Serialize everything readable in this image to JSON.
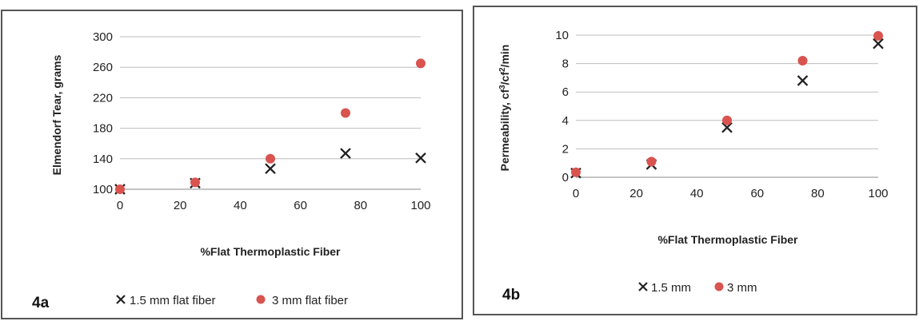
{
  "chart_data": [
    {
      "type": "scatter",
      "panel_label": "4a",
      "xlabel": "%Flat Thermoplastic Fiber",
      "ylabel": "Elmendorf Tear, grams",
      "xlim": [
        0,
        100
      ],
      "ylim": [
        100,
        300
      ],
      "x_ticks": [
        0,
        20,
        40,
        60,
        80,
        100
      ],
      "y_ticks": [
        100,
        140,
        180,
        220,
        260,
        300
      ],
      "grid": "horizontal",
      "legend_position": "bottom",
      "series": [
        {
          "name": "1.5 mm flat fiber",
          "marker": "x",
          "color": "#222222",
          "points": [
            [
              0,
              100
            ],
            [
              25,
              108
            ],
            [
              50,
              127
            ],
            [
              75,
              147
            ],
            [
              100,
              141
            ]
          ]
        },
        {
          "name": "3 mm flat fiber",
          "marker": "circle",
          "color": "#d9534f",
          "points": [
            [
              0,
              100
            ],
            [
              25,
              109
            ],
            [
              50,
              140
            ],
            [
              75,
              200
            ],
            [
              100,
              265
            ]
          ]
        }
      ]
    },
    {
      "type": "scatter",
      "panel_label": "4b",
      "xlabel": "%Flat Thermoplastic Fiber",
      "ylabel_main": "Permeability, cf",
      "ylabel_sup1": "3",
      "ylabel_mid": "/cf",
      "ylabel_sup2": "2",
      "ylabel_end": "/min",
      "xlim": [
        0,
        100
      ],
      "ylim": [
        0,
        10
      ],
      "x_ticks": [
        0,
        20,
        40,
        60,
        80,
        100
      ],
      "y_ticks": [
        0,
        2,
        4,
        6,
        8,
        10
      ],
      "grid": "horizontal",
      "legend_position": "bottom",
      "series": [
        {
          "name": "1.5 mm",
          "marker": "x",
          "color": "#222222",
          "points": [
            [
              0,
              0.3
            ],
            [
              25,
              0.9
            ],
            [
              50,
              3.5
            ],
            [
              75,
              6.8
            ],
            [
              100,
              9.4
            ]
          ]
        },
        {
          "name": "3 mm",
          "marker": "circle",
          "color": "#d9534f",
          "points": [
            [
              0,
              0.35
            ],
            [
              25,
              1.1
            ],
            [
              50,
              4.0
            ],
            [
              75,
              8.2
            ],
            [
              100,
              9.95
            ]
          ]
        }
      ]
    }
  ]
}
